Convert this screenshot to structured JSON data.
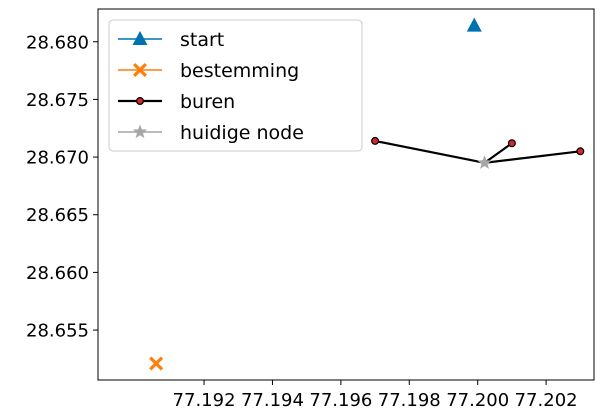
{
  "chart_data": {
    "type": "scatter",
    "title": "",
    "xlabel": "",
    "ylabel": "",
    "xlim": [
      77.1889,
      77.2034
    ],
    "ylim": [
      28.65067,
      28.68284
    ],
    "xticks": [
      77.192,
      77.194,
      77.196,
      77.198,
      77.2,
      77.202
    ],
    "xtick_labels": [
      "77.192",
      "77.194",
      "77.196",
      "77.198",
      "77.200",
      "77.202"
    ],
    "yticks": [
      28.655,
      28.66,
      28.665,
      28.67,
      28.675,
      28.68
    ],
    "ytick_labels": [
      "28.655",
      "28.660",
      "28.665",
      "28.670",
      "28.675",
      "28.680"
    ],
    "grid": false,
    "legend_position": "top-left",
    "series": [
      {
        "name": "start",
        "marker": "triangle",
        "color": "#0072B2",
        "points": [
          {
            "x": 77.1999,
            "y": 28.6814
          }
        ]
      },
      {
        "name": "bestemming",
        "marker": "x",
        "color": "#FF7F0E",
        "points": [
          {
            "x": 77.1906,
            "y": 28.6521
          }
        ]
      },
      {
        "name": "buren",
        "marker": "circle",
        "color": "#000000",
        "marker_fill": "#D62728",
        "segments": [
          [
            {
              "x": 77.2002,
              "y": 28.6695
            },
            {
              "x": 77.197,
              "y": 28.6714
            }
          ],
          [
            {
              "x": 77.2002,
              "y": 28.6695
            },
            {
              "x": 77.201,
              "y": 28.6712
            }
          ],
          [
            {
              "x": 77.2002,
              "y": 28.6695
            },
            {
              "x": 77.203,
              "y": 28.6705
            }
          ]
        ]
      },
      {
        "name": "huidige node",
        "marker": "star",
        "color": "#A6A6A6",
        "points": [
          {
            "x": 77.2002,
            "y": 28.6695
          }
        ]
      }
    ]
  }
}
